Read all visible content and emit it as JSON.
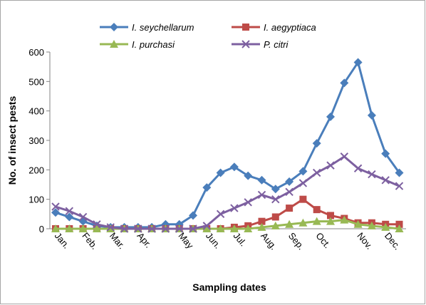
{
  "chart_data": {
    "type": "line",
    "y_label": "No. of insect pests",
    "x_label": "Sampling dates",
    "categories": [
      "Jan.",
      null,
      "Feb.",
      null,
      "Mar.",
      null,
      "Apr.",
      null,
      null,
      "May",
      null,
      "Jun.",
      null,
      "Jul.",
      null,
      "Aug.",
      null,
      "Sep.",
      null,
      "Oct.",
      null,
      null,
      "Nov.",
      null,
      "Dec.",
      null
    ],
    "series": [
      {
        "name": "I. seychellarum",
        "color": "#4a7ebb",
        "marker": "diamond",
        "values": [
          55,
          40,
          25,
          10,
          5,
          5,
          5,
          5,
          15,
          15,
          45,
          140,
          190,
          210,
          180,
          165,
          135,
          160,
          195,
          290,
          380,
          495,
          565,
          385,
          255,
          190
        ]
      },
      {
        "name": "I. aegyptiaca",
        "color": "#be4b48",
        "marker": "square",
        "values": [
          0,
          0,
          0,
          0,
          0,
          0,
          0,
          0,
          0,
          0,
          0,
          0,
          0,
          5,
          10,
          25,
          40,
          70,
          100,
          65,
          45,
          35,
          20,
          20,
          15,
          15
        ]
      },
      {
        "name": "I. purchasi",
        "color": "#98b954",
        "marker": "triangle",
        "values": [
          0,
          0,
          0,
          0,
          0,
          0,
          0,
          0,
          0,
          0,
          0,
          0,
          0,
          0,
          0,
          5,
          10,
          15,
          20,
          25,
          25,
          30,
          15,
          10,
          5,
          0
        ]
      },
      {
        "name": "P. citri",
        "color": "#7d60a0",
        "marker": "x",
        "values": [
          75,
          60,
          40,
          15,
          5,
          0,
          0,
          0,
          0,
          0,
          0,
          10,
          50,
          70,
          90,
          115,
          100,
          125,
          155,
          190,
          215,
          245,
          205,
          185,
          165,
          145
        ]
      }
    ],
    "ylim": [
      0,
      600
    ],
    "yticks": [
      0,
      100,
      200,
      300,
      400,
      500,
      600
    ]
  }
}
